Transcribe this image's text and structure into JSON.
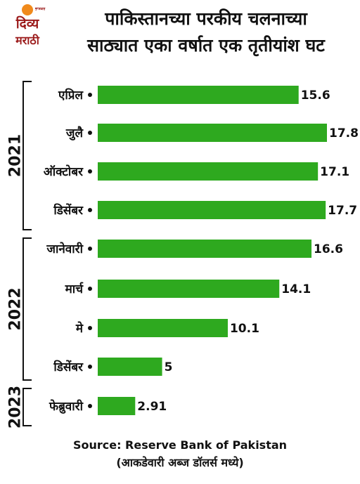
{
  "logo": {
    "line1": "दिव्य",
    "line2": "मराठी",
    "tag": "ਭਾਸ਼ਕਰ",
    "sun_color": "#f08a1c",
    "text_color": "#9b1a1a"
  },
  "headline": {
    "line1": "पाकिस्तानच्या परकीय चलनाच्या",
    "line2": "साठ्यात एका वर्षात एक तृतीयांश घट"
  },
  "chart_data": {
    "type": "bar",
    "orientation": "horizontal",
    "categories": [
      "एप्रिल",
      "जुलै",
      "ऑक्टोबर",
      "डिसेंबर",
      "जानेवारी",
      "मार्च",
      "मे",
      "डिसेंबर",
      "फेब्रुवारी"
    ],
    "values": [
      15.6,
      17.8,
      17.1,
      17.7,
      16.6,
      14.1,
      10.1,
      5,
      2.91
    ],
    "value_labels": [
      "15.6",
      "17.8",
      "17.1",
      "17.7",
      "16.6",
      "14.1",
      "10.1",
      "5",
      "2.91"
    ],
    "groups": [
      {
        "label": "2021",
        "start": 0,
        "end": 3
      },
      {
        "label": "2022",
        "start": 4,
        "end": 7
      },
      {
        "label": "2023",
        "start": 8,
        "end": 8
      }
    ],
    "xlim": [
      0,
      17.8
    ],
    "bar_color": "#2ea91f",
    "grid": false,
    "legend": "none"
  },
  "footer": {
    "source": "Source: Reserve Bank of Pakistan",
    "unit_note": "(आकडेवारी अब्ज डॉलर्स मध्ये)"
  }
}
